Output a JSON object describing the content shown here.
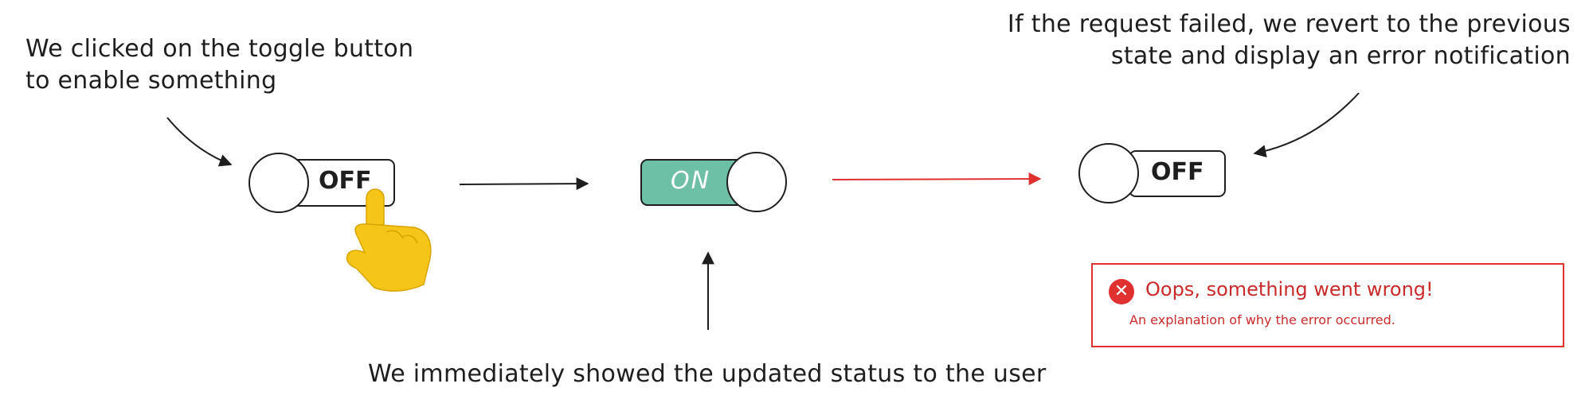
{
  "annotations": {
    "clicked": [
      "We clicked on the toggle button",
      "to enable something"
    ],
    "failed": [
      "If the request failed, we revert to the previous",
      "state and display an error notification"
    ],
    "showed": "We immediately showed the updated status to the user"
  },
  "toggles": {
    "initial": "OFF",
    "optimistic": "ON",
    "reverted": "OFF"
  },
  "error_notification": {
    "title": "Oops, something went wrong!",
    "message": "An explanation of why the error occurred."
  },
  "colors": {
    "ink": "#1e1e1e",
    "on_fill": "#6dbfa6",
    "error": "#e03131",
    "hand": "#f5c518"
  },
  "icons": [
    "pointing-hand-icon",
    "error-x-icon"
  ]
}
